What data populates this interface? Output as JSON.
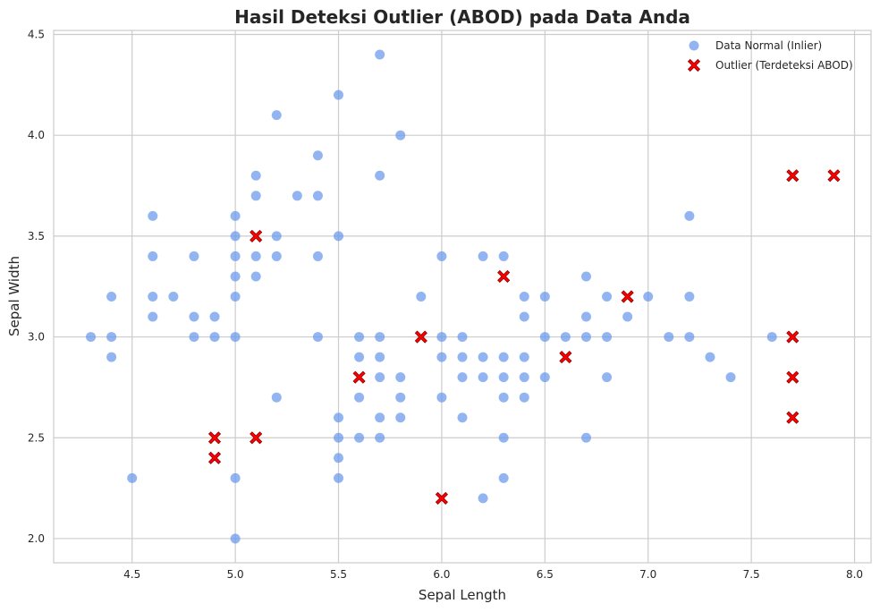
{
  "chart_data": {
    "type": "scatter",
    "title": "Hasil Deteksi Outlier (ABOD) pada Data Anda",
    "xlabel": "Sepal Length",
    "ylabel": "Sepal Width",
    "xlim": [
      4.12,
      8.08
    ],
    "ylim": [
      1.88,
      4.52
    ],
    "xticks": [
      4.5,
      5.0,
      5.5,
      6.0,
      6.5,
      7.0,
      7.5,
      8.0
    ],
    "xtick_labels": [
      "4.5",
      "5.0",
      "5.5",
      "6.0",
      "6.5",
      "7.0",
      "7.5",
      "8.0"
    ],
    "yticks": [
      2.0,
      2.5,
      3.0,
      3.5,
      4.0,
      4.5
    ],
    "ytick_labels": [
      "2.0",
      "2.5",
      "3.0",
      "3.5",
      "4.0",
      "4.5"
    ],
    "grid": true,
    "legend_position": "top-right",
    "series": [
      {
        "name": "Data Normal (Inlier)",
        "marker": "circle",
        "color": "#6495ED",
        "points": [
          [
            4.3,
            3.0
          ],
          [
            4.4,
            3.2
          ],
          [
            4.4,
            3.0
          ],
          [
            4.4,
            2.9
          ],
          [
            4.5,
            2.3
          ],
          [
            4.6,
            3.6
          ],
          [
            4.6,
            3.4
          ],
          [
            4.6,
            3.2
          ],
          [
            4.6,
            3.1
          ],
          [
            4.7,
            3.2
          ],
          [
            4.8,
            3.4
          ],
          [
            4.8,
            3.1
          ],
          [
            4.8,
            3.0
          ],
          [
            4.9,
            3.1
          ],
          [
            4.9,
            3.0
          ],
          [
            5.0,
            3.6
          ],
          [
            5.0,
            3.5
          ],
          [
            5.0,
            3.4
          ],
          [
            5.0,
            3.3
          ],
          [
            5.0,
            3.2
          ],
          [
            5.0,
            3.0
          ],
          [
            5.0,
            2.3
          ],
          [
            5.0,
            2.0
          ],
          [
            5.1,
            3.8
          ],
          [
            5.1,
            3.7
          ],
          [
            5.1,
            3.4
          ],
          [
            5.1,
            3.3
          ],
          [
            5.2,
            4.1
          ],
          [
            5.2,
            3.5
          ],
          [
            5.2,
            3.4
          ],
          [
            5.2,
            2.7
          ],
          [
            5.3,
            3.7
          ],
          [
            5.4,
            3.9
          ],
          [
            5.4,
            3.7
          ],
          [
            5.4,
            3.4
          ],
          [
            5.4,
            3.0
          ],
          [
            5.5,
            4.2
          ],
          [
            5.5,
            3.5
          ],
          [
            5.5,
            2.6
          ],
          [
            5.5,
            2.5
          ],
          [
            5.5,
            2.4
          ],
          [
            5.5,
            2.3
          ],
          [
            5.6,
            3.0
          ],
          [
            5.6,
            2.9
          ],
          [
            5.6,
            2.7
          ],
          [
            5.6,
            2.5
          ],
          [
            5.7,
            4.4
          ],
          [
            5.7,
            3.8
          ],
          [
            5.7,
            3.0
          ],
          [
            5.7,
            2.9
          ],
          [
            5.7,
            2.8
          ],
          [
            5.7,
            2.6
          ],
          [
            5.7,
            2.5
          ],
          [
            5.8,
            4.0
          ],
          [
            5.8,
            2.8
          ],
          [
            5.8,
            2.7
          ],
          [
            5.8,
            2.6
          ],
          [
            5.9,
            3.2
          ],
          [
            6.0,
            3.4
          ],
          [
            6.0,
            3.0
          ],
          [
            6.0,
            2.9
          ],
          [
            6.0,
            2.7
          ],
          [
            6.1,
            3.0
          ],
          [
            6.1,
            2.9
          ],
          [
            6.1,
            2.8
          ],
          [
            6.1,
            2.6
          ],
          [
            6.2,
            3.4
          ],
          [
            6.2,
            2.9
          ],
          [
            6.2,
            2.8
          ],
          [
            6.2,
            2.2
          ],
          [
            6.3,
            3.4
          ],
          [
            6.3,
            2.9
          ],
          [
            6.3,
            2.8
          ],
          [
            6.3,
            2.7
          ],
          [
            6.3,
            2.5
          ],
          [
            6.3,
            2.3
          ],
          [
            6.4,
            3.2
          ],
          [
            6.4,
            3.1
          ],
          [
            6.4,
            2.9
          ],
          [
            6.4,
            2.8
          ],
          [
            6.4,
            2.7
          ],
          [
            6.5,
            3.2
          ],
          [
            6.5,
            3.0
          ],
          [
            6.5,
            2.8
          ],
          [
            6.6,
            3.0
          ],
          [
            6.7,
            3.3
          ],
          [
            6.7,
            3.1
          ],
          [
            6.7,
            3.0
          ],
          [
            6.7,
            2.5
          ],
          [
            6.8,
            3.2
          ],
          [
            6.8,
            3.0
          ],
          [
            6.8,
            2.8
          ],
          [
            6.9,
            3.1
          ],
          [
            7.0,
            3.2
          ],
          [
            7.1,
            3.0
          ],
          [
            7.2,
            3.6
          ],
          [
            7.2,
            3.2
          ],
          [
            7.2,
            3.0
          ],
          [
            7.3,
            2.9
          ],
          [
            7.4,
            2.8
          ],
          [
            7.6,
            3.0
          ]
        ]
      },
      {
        "name": "Outlier (Terdeteksi ABOD)",
        "marker": "X",
        "color": "#FF0000",
        "points": [
          [
            4.9,
            2.5
          ],
          [
            4.9,
            2.4
          ],
          [
            5.1,
            3.5
          ],
          [
            5.1,
            2.5
          ],
          [
            5.6,
            2.8
          ],
          [
            5.9,
            3.0
          ],
          [
            6.0,
            2.2
          ],
          [
            6.3,
            3.3
          ],
          [
            6.6,
            2.9
          ],
          [
            6.9,
            3.2
          ],
          [
            7.7,
            3.8
          ],
          [
            7.7,
            3.0
          ],
          [
            7.7,
            2.8
          ],
          [
            7.7,
            2.6
          ],
          [
            7.9,
            3.8
          ]
        ]
      }
    ]
  }
}
